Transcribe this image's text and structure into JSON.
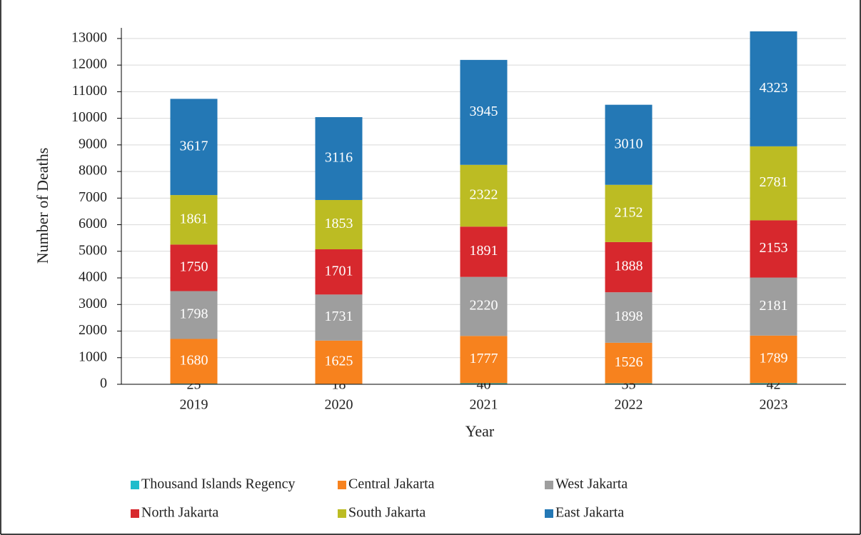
{
  "chart_data": {
    "type": "stacked_bar",
    "x_label": "Year",
    "y_label": "Number of Deaths",
    "categories": [
      "2019",
      "2020",
      "2021",
      "2022",
      "2023"
    ],
    "series": [
      {
        "name": "Thousand Islands Regency",
        "color": "#1fbccc",
        "values": [
          25,
          18,
          40,
          35,
          42
        ]
      },
      {
        "name": "Central Jakarta",
        "color": "#f7821e",
        "values": [
          1680,
          1625,
          1777,
          1526,
          1789
        ]
      },
      {
        "name": "West Jakarta",
        "color": "#9e9e9e",
        "values": [
          1798,
          1731,
          2220,
          1898,
          2181
        ]
      },
      {
        "name": "North Jakarta",
        "color": "#d7282d",
        "values": [
          1750,
          1701,
          1891,
          1888,
          2153
        ]
      },
      {
        "name": "South Jakarta",
        "color": "#bcbc23",
        "values": [
          1861,
          1853,
          2322,
          2152,
          2781
        ]
      },
      {
        "name": "East Jakarta",
        "color": "#2478b5",
        "values": [
          3617,
          3116,
          3945,
          3010,
          4323
        ]
      }
    ],
    "ylim": [
      0,
      13400
    ],
    "yticks": [
      0,
      1000,
      2000,
      3000,
      4000,
      5000,
      6000,
      7000,
      8000,
      9000,
      10000,
      11000,
      12000,
      13000
    ],
    "grid": true,
    "legend": "bottom"
  }
}
